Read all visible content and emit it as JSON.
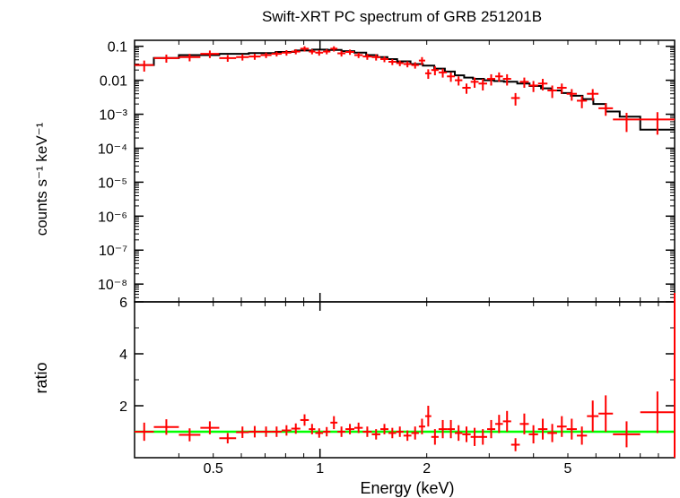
{
  "title": "Swift-XRT PC spectrum of GRB 251201B",
  "colors": {
    "data": "#ff0000",
    "model": "#000000",
    "unity": "#00ff00",
    "frame": "#000000"
  },
  "chart_data": [
    {
      "type": "scatter",
      "panel": "spectrum",
      "xlabel": "Energy (keV)",
      "ylabel": "counts s⁻¹ keV⁻¹",
      "xscale": "log",
      "yscale": "log",
      "xlim": [
        0.3,
        10
      ],
      "ylim": [
        3e-09,
        0.15
      ],
      "yticks": [
        {
          "value": 0.1,
          "label": "0.1"
        },
        {
          "value": 0.01,
          "label": "0.01"
        },
        {
          "value": 0.001,
          "label": "10⁻³"
        },
        {
          "value": 0.0001,
          "label": "10⁻⁴"
        },
        {
          "value": 1e-05,
          "label": "10⁻⁵"
        },
        {
          "value": 1e-06,
          "label": "10⁻⁶"
        },
        {
          "value": 1e-07,
          "label": "10⁻⁷"
        },
        {
          "value": 1e-08,
          "label": "10⁻⁸"
        }
      ],
      "grid": false,
      "series": [
        {
          "kind": "data",
          "points": [
            [
              0.3,
              0.34,
              0.028,
              0.01
            ],
            [
              0.34,
              0.4,
              0.045,
              0.012
            ],
            [
              0.4,
              0.46,
              0.048,
              0.012
            ],
            [
              0.46,
              0.52,
              0.06,
              0.015
            ],
            [
              0.52,
              0.58,
              0.045,
              0.01
            ],
            [
              0.58,
              0.63,
              0.048,
              0.01
            ],
            [
              0.63,
              0.68,
              0.05,
              0.01
            ],
            [
              0.68,
              0.73,
              0.055,
              0.01
            ],
            [
              0.73,
              0.78,
              0.06,
              0.01
            ],
            [
              0.78,
              0.83,
              0.065,
              0.012
            ],
            [
              0.83,
              0.88,
              0.07,
              0.012
            ],
            [
              0.88,
              0.93,
              0.085,
              0.015
            ],
            [
              0.93,
              0.97,
              0.07,
              0.012
            ],
            [
              0.97,
              1.02,
              0.065,
              0.012
            ],
            [
              1.02,
              1.07,
              0.07,
              0.012
            ],
            [
              1.07,
              1.12,
              0.085,
              0.015
            ],
            [
              1.12,
              1.18,
              0.062,
              0.012
            ],
            [
              1.18,
              1.25,
              0.068,
              0.012
            ],
            [
              1.25,
              1.32,
              0.055,
              0.01
            ],
            [
              1.32,
              1.4,
              0.05,
              0.01
            ],
            [
              1.4,
              1.48,
              0.048,
              0.01
            ],
            [
              1.48,
              1.56,
              0.042,
              0.008
            ],
            [
              1.56,
              1.64,
              0.035,
              0.007
            ],
            [
              1.64,
              1.72,
              0.032,
              0.006
            ],
            [
              1.72,
              1.81,
              0.03,
              0.006
            ],
            [
              1.81,
              1.9,
              0.028,
              0.006
            ],
            [
              1.9,
              1.98,
              0.038,
              0.01
            ],
            [
              1.98,
              2.06,
              0.016,
              0.005
            ],
            [
              2.06,
              2.16,
              0.02,
              0.006
            ],
            [
              2.16,
              2.28,
              0.017,
              0.005
            ],
            [
              2.28,
              2.4,
              0.013,
              0.004
            ],
            [
              2.4,
              2.52,
              0.01,
              0.003
            ],
            [
              2.52,
              2.66,
              0.006,
              0.002
            ],
            [
              2.66,
              2.8,
              0.009,
              0.003
            ],
            [
              2.8,
              2.96,
              0.008,
              0.003
            ],
            [
              2.96,
              3.12,
              0.011,
              0.004
            ],
            [
              3.12,
              3.28,
              0.013,
              0.004
            ],
            [
              3.28,
              3.46,
              0.011,
              0.004
            ],
            [
              3.46,
              3.66,
              0.003,
              0.0012
            ],
            [
              3.66,
              3.88,
              0.009,
              0.003
            ],
            [
              3.88,
              4.12,
              0.007,
              0.0025
            ],
            [
              4.12,
              4.38,
              0.008,
              0.003
            ],
            [
              4.38,
              4.66,
              0.005,
              0.002
            ],
            [
              4.66,
              4.96,
              0.006,
              0.002
            ],
            [
              4.96,
              5.3,
              0.004,
              0.0015
            ],
            [
              5.3,
              5.66,
              0.0025,
              0.001
            ],
            [
              5.66,
              6.1,
              0.004,
              0.0015
            ],
            [
              6.1,
              6.7,
              0.0015,
              0.0006
            ],
            [
              6.7,
              8.0,
              0.0007,
              0.0004
            ],
            [
              8.0,
              10.0,
              0.0007,
              0.00045
            ]
          ]
        },
        {
          "kind": "model",
          "steps": [
            [
              0.3,
              0.028
            ],
            [
              0.34,
              0.045
            ],
            [
              0.4,
              0.055
            ],
            [
              0.52,
              0.06
            ],
            [
              0.63,
              0.063
            ],
            [
              0.75,
              0.068
            ],
            [
              0.85,
              0.075
            ],
            [
              0.95,
              0.08
            ],
            [
              1.05,
              0.078
            ],
            [
              1.15,
              0.072
            ],
            [
              1.25,
              0.065
            ],
            [
              1.35,
              0.055
            ],
            [
              1.45,
              0.048
            ],
            [
              1.55,
              0.042
            ],
            [
              1.65,
              0.036
            ],
            [
              1.8,
              0.03
            ],
            [
              1.95,
              0.027
            ],
            [
              2.1,
              0.022
            ],
            [
              2.25,
              0.018
            ],
            [
              2.4,
              0.014
            ],
            [
              2.55,
              0.012
            ],
            [
              2.7,
              0.011
            ],
            [
              2.9,
              0.01
            ],
            [
              3.1,
              0.0095
            ],
            [
              3.3,
              0.009
            ],
            [
              3.6,
              0.008
            ],
            [
              3.9,
              0.0068
            ],
            [
              4.2,
              0.0058
            ],
            [
              4.5,
              0.005
            ],
            [
              4.8,
              0.0042
            ],
            [
              5.1,
              0.0035
            ],
            [
              5.5,
              0.0028
            ],
            [
              5.9,
              0.002
            ],
            [
              6.4,
              0.0012
            ],
            [
              7.0,
              0.00085
            ],
            [
              8.0,
              0.00035
            ],
            [
              10.0,
              0.00035
            ]
          ]
        }
      ]
    },
    {
      "type": "scatter",
      "panel": "ratio",
      "xlabel": "Energy (keV)",
      "ylabel": "ratio",
      "xscale": "log",
      "yscale": "linear",
      "xlim": [
        0.3,
        10
      ],
      "ylim": [
        0,
        6
      ],
      "yticks": [
        {
          "value": 2,
          "label": "2"
        },
        {
          "value": 4,
          "label": "4"
        },
        {
          "value": 6,
          "label": "6"
        }
      ],
      "xticks": [
        {
          "value": 0.5,
          "label": "0.5"
        },
        {
          "value": 1,
          "label": "1"
        },
        {
          "value": 2,
          "label": "2"
        },
        {
          "value": 5,
          "label": "5"
        }
      ],
      "reference_line": 1,
      "points": [
        [
          0.3,
          0.34,
          1.0,
          0.35
        ],
        [
          0.34,
          0.4,
          1.18,
          0.3
        ],
        [
          0.4,
          0.46,
          0.88,
          0.25
        ],
        [
          0.46,
          0.52,
          1.15,
          0.25
        ],
        [
          0.52,
          0.58,
          0.75,
          0.2
        ],
        [
          0.58,
          0.63,
          0.98,
          0.22
        ],
        [
          0.63,
          0.68,
          1.0,
          0.22
        ],
        [
          0.68,
          0.73,
          1.0,
          0.2
        ],
        [
          0.73,
          0.78,
          1.0,
          0.2
        ],
        [
          0.78,
          0.83,
          1.05,
          0.2
        ],
        [
          0.83,
          0.88,
          1.12,
          0.2
        ],
        [
          0.88,
          0.93,
          1.45,
          0.22
        ],
        [
          0.93,
          0.97,
          1.1,
          0.2
        ],
        [
          0.97,
          1.02,
          0.95,
          0.18
        ],
        [
          1.02,
          1.07,
          1.0,
          0.18
        ],
        [
          1.07,
          1.12,
          1.35,
          0.25
        ],
        [
          1.12,
          1.18,
          1.0,
          0.2
        ],
        [
          1.18,
          1.25,
          1.1,
          0.2
        ],
        [
          1.25,
          1.32,
          1.15,
          0.2
        ],
        [
          1.32,
          1.4,
          1.0,
          0.2
        ],
        [
          1.4,
          1.48,
          0.9,
          0.2
        ],
        [
          1.48,
          1.56,
          1.1,
          0.2
        ],
        [
          1.56,
          1.64,
          0.95,
          0.2
        ],
        [
          1.64,
          1.72,
          1.0,
          0.2
        ],
        [
          1.72,
          1.81,
          0.85,
          0.2
        ],
        [
          1.81,
          1.9,
          0.95,
          0.25
        ],
        [
          1.9,
          1.98,
          1.2,
          0.3
        ],
        [
          1.98,
          2.06,
          1.6,
          0.4
        ],
        [
          2.06,
          2.16,
          0.8,
          0.3
        ],
        [
          2.16,
          2.28,
          1.1,
          0.35
        ],
        [
          2.28,
          2.4,
          1.1,
          0.35
        ],
        [
          2.4,
          2.52,
          0.95,
          0.3
        ],
        [
          2.52,
          2.66,
          0.9,
          0.3
        ],
        [
          2.66,
          2.8,
          0.8,
          0.35
        ],
        [
          2.8,
          2.96,
          0.8,
          0.3
        ],
        [
          2.96,
          3.12,
          1.1,
          0.35
        ],
        [
          3.12,
          3.28,
          1.3,
          0.35
        ],
        [
          3.28,
          3.46,
          1.4,
          0.4
        ],
        [
          3.46,
          3.66,
          0.5,
          0.25
        ],
        [
          3.66,
          3.88,
          1.3,
          0.4
        ],
        [
          3.88,
          4.12,
          0.9,
          0.35
        ],
        [
          4.12,
          4.38,
          1.1,
          0.4
        ],
        [
          4.38,
          4.66,
          0.95,
          0.35
        ],
        [
          4.66,
          4.96,
          1.2,
          0.4
        ],
        [
          4.96,
          5.3,
          1.1,
          0.4
        ],
        [
          5.3,
          5.66,
          0.85,
          0.35
        ],
        [
          5.66,
          6.1,
          1.6,
          0.6
        ],
        [
          6.1,
          6.7,
          1.7,
          0.7
        ],
        [
          6.7,
          8.0,
          0.9,
          0.5
        ],
        [
          8.0,
          10.0,
          1.75,
          0.8
        ]
      ]
    }
  ]
}
